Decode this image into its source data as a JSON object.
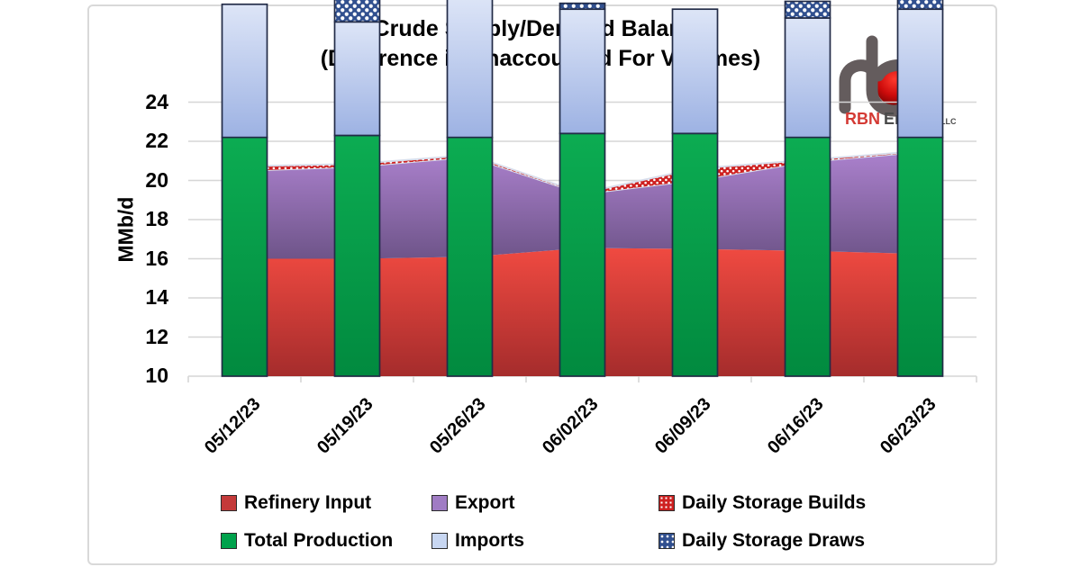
{
  "title": {
    "line1": "Crude Supply/Demand Balance",
    "line2": "(Difference is Unaccounted For Volumes)"
  },
  "logo": {
    "brand_red": "RBN",
    "brand_gray": "Energy",
    "brand_suffix": "LLC"
  },
  "chart_data": {
    "type": "combo: stacked bars (supply) + stacked areas (demand)",
    "categories": [
      "05/12/23",
      "05/19/23",
      "05/26/23",
      "06/02/23",
      "06/09/23",
      "06/16/23",
      "06/23/23"
    ],
    "bar_series": [
      {
        "name": "Total Production",
        "style": "solid-green",
        "values": [
          12.2,
          12.3,
          12.2,
          12.4,
          12.4,
          12.2,
          12.2
        ]
      },
      {
        "name": "Imports",
        "style": "solid-lightblue",
        "values": [
          6.8,
          5.8,
          7.2,
          6.35,
          6.35,
          6.1,
          6.55
        ]
      },
      {
        "name": "Daily Storage Draws",
        "style": "pattern-blue-dots",
        "values": [
          0,
          2.0,
          0,
          0.3,
          0,
          0.85,
          1.6
        ]
      }
    ],
    "area_series": [
      {
        "name": "Refinery Input",
        "style": "solid-red",
        "values": [
          16.0,
          16.0,
          16.1,
          16.55,
          16.5,
          16.4,
          16.25
        ]
      },
      {
        "name": "Export",
        "style": "solid-purple",
        "values": [
          4.45,
          4.7,
          5.1,
          2.75,
          3.5,
          4.55,
          5.2
        ]
      },
      {
        "name": "Daily Storage Builds",
        "style": "pattern-red-dots",
        "values": [
          0.25,
          0.15,
          0.1,
          0.05,
          0.6,
          0.1,
          0.05
        ]
      }
    ],
    "ylabel": "MMb/d",
    "ylim": [
      10,
      24
    ],
    "yticks": [
      24,
      22,
      20,
      18,
      16,
      14,
      12,
      10
    ],
    "grid": "horizontal",
    "legend_position": "bottom"
  },
  "legend": {
    "row1": [
      {
        "label": "Refinery Input",
        "swatch": "solid-red"
      },
      {
        "label": "Export",
        "swatch": "solid-purple"
      },
      {
        "label": "Daily Storage Builds",
        "swatch": "pattern-red-dots"
      }
    ],
    "row2": [
      {
        "label": "Total Production",
        "swatch": "solid-green"
      },
      {
        "label": "Imports",
        "swatch": "solid-lightblue"
      },
      {
        "label": "Daily Storage Draws",
        "swatch": "pattern-blue-dots"
      }
    ]
  },
  "colors": {
    "red_top": "#f04a41",
    "red_bottom": "#a52c2c",
    "purple_top": "#ab81cd",
    "purple_bottom": "#6e5489",
    "green_top": "#0cac52",
    "green_bottom": "#018a3f",
    "blue_top": "#dde5f7",
    "blue_bottom": "#9db2e3",
    "builds_base": "#ce2020",
    "draws_base": "#31508f",
    "pattern_dot": "#ffffff",
    "bar_border": "#222b47",
    "area_edge": "#d8deec",
    "gridline": "#d6d6d6",
    "axis_text": "#000000",
    "card_border": "#d9d9d9",
    "legend_refinery": "#c43a3a",
    "legend_export": "#a07cc4",
    "legend_production": "#00a24c",
    "legend_imports": "#c8d7f2",
    "logo_red": "#d43a34",
    "logo_gray": "#645c5d",
    "logo_ball": "#cc0b0b"
  }
}
